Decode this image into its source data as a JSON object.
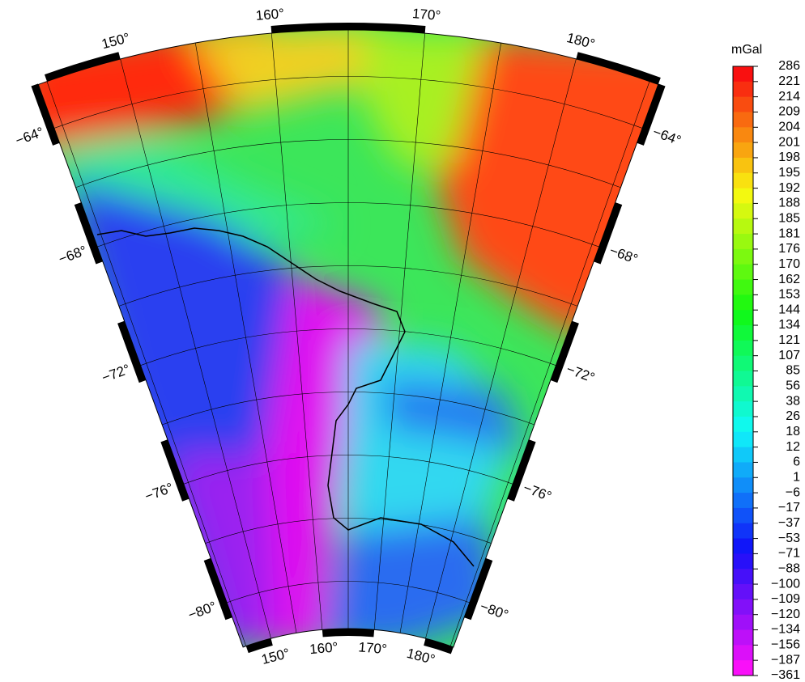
{
  "colorbar": {
    "unit": "mGal",
    "labels": [
      "286",
      "221",
      "214",
      "209",
      "204",
      "201",
      "198",
      "195",
      "192",
      "188",
      "185",
      "181",
      "176",
      "170",
      "162",
      "153",
      "144",
      "134",
      "121",
      "107",
      "85",
      "56",
      "38",
      "26",
      "18",
      "12",
      "6",
      "1",
      "−6",
      "−17",
      "−37",
      "−53",
      "−71",
      "−88",
      "−100",
      "−109",
      "−120",
      "−134",
      "−156",
      "−187",
      "−361"
    ]
  },
  "map": {
    "top_lon_labels": [
      "150°",
      "160°",
      "170°",
      "180°"
    ],
    "bottom_lon_labels": [
      "150°",
      "160°",
      "170°",
      "180°"
    ],
    "left_lat_labels": [
      "−64°",
      "−68°",
      "−72°",
      "−76°",
      "−80°"
    ],
    "right_lat_labels": [
      "−64°",
      "−68°",
      "−72°",
      "−76°",
      "−80°"
    ]
  }
}
